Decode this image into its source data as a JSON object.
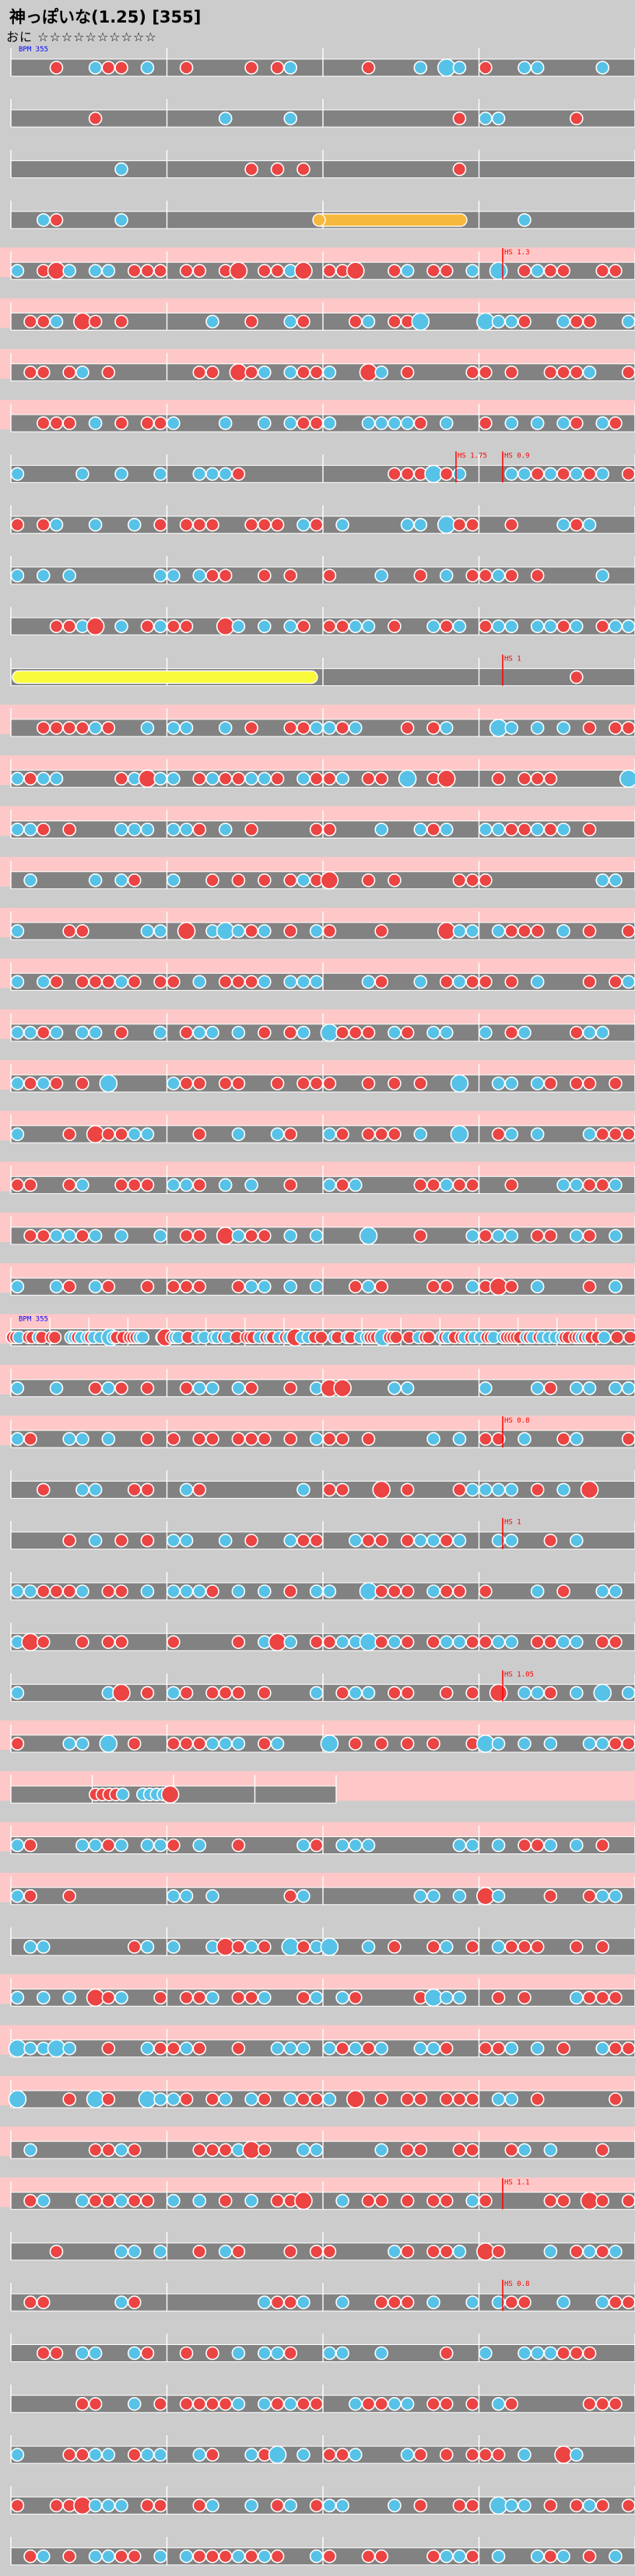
{
  "title": "神っぽいな(1.25) [355]",
  "difficulty": {
    "label": "おに",
    "stars": "☆☆☆☆☆☆☆☆☆☆"
  },
  "colors": {
    "background": "#cccccc",
    "track": "#828282",
    "track_band": "#ffc8c8",
    "don": "#ec4343",
    "ka": "#57c2e7",
    "roll": "#f7b93d",
    "balloon": "#fafa3c",
    "event_red": "#ff0000",
    "event_blue": "#0000ff",
    "measure_number": "#000000"
  },
  "icons": {
    "don_note": "red-circle-icon",
    "ka_note": "blue-circle-icon",
    "roll": "yellow-roll-icon",
    "balloon": "balloon-icon"
  },
  "chart_events": [
    {
      "row": 0,
      "text": "BPM 355",
      "color": "blue"
    },
    {
      "row": 4,
      "text": "HS 1.3",
      "color": "red"
    },
    {
      "row": 8,
      "text": "HS 0.9",
      "color": "red"
    },
    {
      "row": 8,
      "text": "HS 1.75",
      "color": "red"
    },
    {
      "row": 12,
      "text": "HS 1",
      "color": "red"
    },
    {
      "row": 25,
      "text": "BPM 355",
      "color": "blue"
    },
    {
      "row": 27,
      "text": "HS 0.8",
      "color": "red"
    },
    {
      "row": 29,
      "text": "HS 1",
      "color": "red"
    },
    {
      "row": 32,
      "text": "HS 1.05",
      "color": "red"
    },
    {
      "row": 42,
      "text": "HS 1.1",
      "color": "red"
    },
    {
      "row": 44,
      "text": "HS 0.8",
      "color": "red"
    }
  ]
}
